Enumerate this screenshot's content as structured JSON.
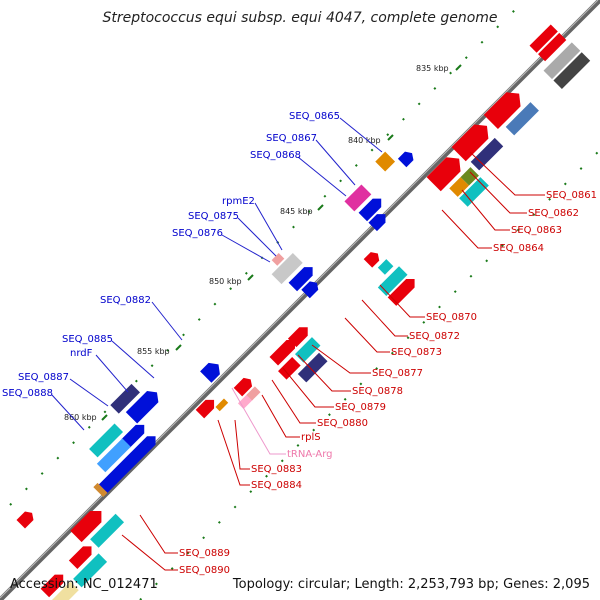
{
  "title": "Streptococcus equi subsp. equi 4047, complete genome",
  "footer": {
    "accession": "Accession: NC_012471",
    "topology": "Topology: circular; Length: 2,253,793 bp; Genes: 2,095"
  },
  "colors": {
    "backbone": "#777777",
    "cds_forward": "#e8000b",
    "cds_reverse": "#0010d9",
    "rna": "#ffaacc",
    "tick": "#1a7a1a",
    "label_forward": "#cc0000",
    "label_reverse": "#0000cc",
    "label_rna": "#ee77aa"
  },
  "scale_ticks": [
    "835 kbp",
    "840 kbp",
    "845 kbp",
    "850 kbp",
    "855 kbp",
    "860 kbp"
  ],
  "labels_reverse": [
    "SEQ_0865",
    "SEQ_0867",
    "SEQ_0868",
    "rpmE2",
    "SEQ_0875",
    "SEQ_0876",
    "SEQ_0882",
    "SEQ_0885",
    "nrdF",
    "SEQ_0887",
    "SEQ_0888"
  ],
  "labels_forward": [
    "SEQ_0861",
    "SEQ_0862",
    "SEQ_0863",
    "SEQ_0864",
    "SEQ_0870",
    "SEQ_0872",
    "SEQ_0873",
    "SEQ_0877",
    "SEQ_0878",
    "SEQ_0879",
    "SEQ_0880",
    "rplS",
    "SEQ_0883",
    "SEQ_0884",
    "SEQ_0889",
    "SEQ_0890"
  ],
  "labels_rna": [
    "tRNA-Arg"
  ]
}
